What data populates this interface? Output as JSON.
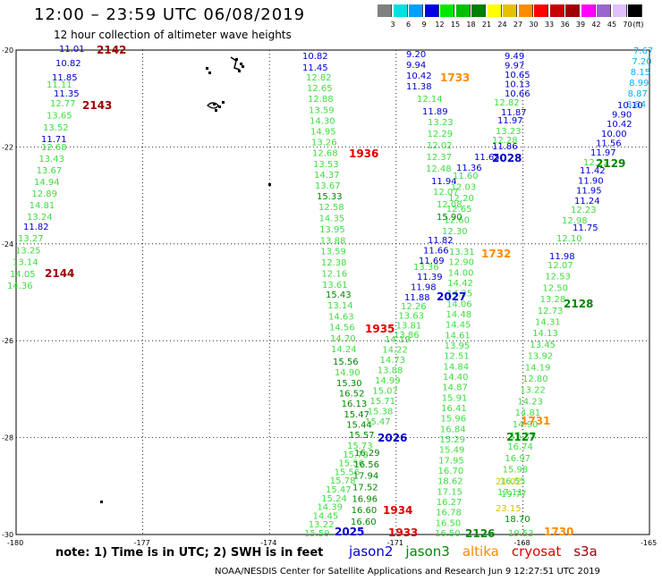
{
  "header": {
    "title": "12:00 – 23:59 UTC 06/08/2019",
    "subtitle": "12 hour collection of altimeter wave heights"
  },
  "colorbar": {
    "unit": "(ft)",
    "swatches": [
      {
        "label": "3",
        "color": "#808080"
      },
      {
        "label": "6",
        "color": "#00e0e0"
      },
      {
        "label": "9",
        "color": "#00a0ff"
      },
      {
        "label": "12",
        "color": "#0000e8"
      },
      {
        "label": "15",
        "color": "#00e800"
      },
      {
        "label": "18",
        "color": "#00c000"
      },
      {
        "label": "21",
        "color": "#008000"
      },
      {
        "label": "24",
        "color": "#ffff00"
      },
      {
        "label": "27",
        "color": "#e8c000"
      },
      {
        "label": "30",
        "color": "#ff8c00"
      },
      {
        "label": "33",
        "color": "#ff0000"
      },
      {
        "label": "36",
        "color": "#c80000"
      },
      {
        "label": "39",
        "color": "#a00000"
      },
      {
        "label": "42",
        "color": "#ff00ff"
      },
      {
        "label": "45",
        "color": "#9966cc"
      },
      {
        "label": "70",
        "color": "#e0c0ff"
      },
      {
        "label": "",
        "color": "#000000"
      }
    ]
  },
  "axes": {
    "lat_labels": [
      "-20",
      "-22",
      "-24",
      "-26",
      "-28",
      "-30"
    ],
    "lon_labels": [
      "-180",
      "-177",
      "-174",
      "-171",
      "-168",
      "-165"
    ]
  },
  "value_colors": {
    "b": "#0000d0",
    "g": "#40dd40",
    "k": "#008800",
    "c": "#00b0ff",
    "y": "#d8c000"
  },
  "tracks": [
    {
      "color": "b",
      "values": [
        "11.01",
        "10.82",
        "11.85"
      ]
    },
    {
      "color": "g",
      "values": [
        "11.11"
      ]
    },
    {
      "color": "b",
      "values": [
        "11.35"
      ]
    },
    {
      "color": "g",
      "values": [
        "12.77",
        "13.65",
        "13.52"
      ]
    },
    {
      "color": "b",
      "values": [
        "11.71"
      ]
    },
    {
      "color": "g",
      "values": [
        "12.68",
        "13.43",
        "13.67",
        "14.94",
        "12.89",
        "14.81",
        "13.24"
      ]
    },
    {
      "color": "b",
      "values": [
        "11.82"
      ]
    },
    {
      "color": "g",
      "values": [
        "13.27",
        "13.25",
        "13.14",
        "14.05",
        "14.36"
      ]
    },
    {
      "color": "b",
      "values": [
        "10.82",
        "11.45"
      ]
    },
    {
      "color": "g",
      "values": [
        "12.82",
        "12.65",
        "12.88",
        "13.59",
        "14.30",
        "14.95",
        "13.26",
        "12.68",
        "13.53",
        "14.37",
        "13.67"
      ]
    },
    {
      "color": "k",
      "values": [
        "15.33"
      ]
    },
    {
      "color": "g",
      "values": [
        "12.58",
        "14.35",
        "13.95",
        "13.88",
        "13.59",
        "12.38",
        "12.16",
        "13.61"
      ]
    },
    {
      "color": "k",
      "values": [
        "15.43"
      ]
    },
    {
      "color": "g",
      "values": [
        "13.14",
        "14.63",
        "14.56",
        "14.70",
        "14.24"
      ]
    },
    {
      "color": "k",
      "values": [
        "15.56"
      ]
    },
    {
      "color": "g",
      "values": [
        "14.90"
      ]
    },
    {
      "color": "k",
      "values": [
        "15.30",
        "16.52",
        "16.13",
        "15.47",
        "15.44",
        "15.57"
      ]
    },
    {
      "color": "g",
      "values": [
        "15.73",
        "15.78",
        "15.56",
        "15.56",
        "15.78",
        "15.47",
        "15.24",
        "14.39",
        "14.45",
        "13.22",
        "15.59"
      ]
    },
    {
      "color": "k",
      "values": [
        "16.29",
        "16.56",
        "17.94",
        "17.52",
        "16.96",
        "16.60",
        "16.60"
      ]
    },
    {
      "color": "g",
      "values": [
        "14.19",
        "14.22",
        "14.73",
        "13.88",
        "14.99",
        "15.07",
        "15.71",
        "15.38",
        "15.47"
      ]
    },
    {
      "color": "b",
      "values": [
        "9.20",
        "9.94",
        "10.42",
        "11.38"
      ]
    },
    {
      "color": "g",
      "values": [
        "12.14"
      ]
    },
    {
      "color": "b",
      "values": [
        "11.89"
      ]
    },
    {
      "color": "g",
      "values": [
        "13.23",
        "12.29",
        "12.02",
        "12.37",
        "12.48"
      ]
    },
    {
      "color": "b",
      "values": [
        "11.94"
      ]
    },
    {
      "color": "g",
      "values": [
        "12.07",
        "12.08"
      ]
    },
    {
      "color": "b",
      "values": [
        "11.82",
        "11.66",
        "11.69"
      ]
    },
    {
      "color": "g",
      "values": [
        "13.36"
      ]
    },
    {
      "color": "b",
      "values": [
        "11.39",
        "11.98",
        "11.88"
      ]
    },
    {
      "color": "g",
      "values": [
        "12.26",
        "13.63",
        "13.81",
        "13.86"
      ]
    },
    {
      "color": "b",
      "values": [
        "9.49",
        "9.97",
        "10.65",
        "10.13",
        "10.66"
      ]
    },
    {
      "color": "g",
      "values": [
        "12.82"
      ]
    },
    {
      "color": "b",
      "values": [
        "11.87",
        "11.97"
      ]
    },
    {
      "color": "g",
      "values": [
        "13.23",
        "12.28"
      ]
    },
    {
      "color": "b",
      "values": [
        "11.86",
        "11.65",
        "11.36"
      ]
    },
    {
      "color": "g",
      "values": [
        "11.60",
        "12.03",
        "12.20",
        "12.65",
        "12.60",
        "12.30"
      ]
    },
    {
      "color": "k",
      "values": [
        "15.90"
      ]
    },
    {
      "color": "g",
      "values": [
        "13.31",
        "12.90",
        "14.00",
        "14.42",
        "14.25",
        "14.06",
        "14.48",
        "14.45",
        "14.61",
        "13.95",
        "12.51",
        "14.84",
        "14.40",
        "14.87",
        "15.91",
        "16.41",
        "15.96",
        "16.84",
        "15.29",
        "15.49",
        "17.95",
        "16.70",
        "18.62",
        "17.15",
        "16.27",
        "16.78",
        "16.50",
        "16.50"
      ]
    },
    {
      "color": "c",
      "values": [
        "7.67",
        "7.20",
        "8.15",
        "8.99",
        "8.87",
        "8.84"
      ]
    },
    {
      "color": "b",
      "values": [
        "10.10",
        "9.90",
        "10.42",
        "10.00",
        "11.56",
        "11.97"
      ]
    },
    {
      "color": "g",
      "values": [
        "12.22"
      ]
    },
    {
      "color": "b",
      "values": [
        "11.42",
        "11.90",
        "11.95",
        "11.24"
      ]
    },
    {
      "color": "g",
      "values": [
        "12.23",
        "12.98"
      ]
    },
    {
      "color": "b",
      "values": [
        "11.75"
      ]
    },
    {
      "color": "g",
      "values": [
        "12.10"
      ]
    },
    {
      "color": "b",
      "values": [
        "11.98"
      ]
    },
    {
      "color": "g",
      "values": [
        "12.07",
        "12.53",
        "12.50",
        "13.28",
        "12.73",
        "14.31",
        "14.13",
        "13.45",
        "13.92",
        "14.19",
        "12.80",
        "13.22",
        "14.23",
        "14.81",
        "14.90",
        "15.25",
        "16.74",
        "16.97",
        "15.98",
        "16.55",
        "17.11"
      ]
    },
    {
      "color": "y",
      "values": [
        "21.02",
        "23.15"
      ]
    },
    {
      "color": "g",
      "values": [
        "19.77"
      ]
    },
    {
      "color": "k",
      "values": [
        "18.70"
      ]
    },
    {
      "color": "g",
      "values": [
        "19.53"
      ]
    }
  ],
  "passes": [
    {
      "label": "2142",
      "color": "#a00000"
    },
    {
      "label": "2143",
      "color": "#a00000"
    },
    {
      "label": "2144",
      "color": "#a00000"
    },
    {
      "label": "1936",
      "color": "#e00000"
    },
    {
      "label": "1935",
      "color": "#e00000"
    },
    {
      "label": "1934",
      "color": "#e00000"
    },
    {
      "label": "1933",
      "color": "#e00000"
    },
    {
      "label": "1733",
      "color": "#ff8c00"
    },
    {
      "label": "1732",
      "color": "#ff8c00"
    },
    {
      "label": "1731",
      "color": "#ff8c00"
    },
    {
      "label": "1730",
      "color": "#ff8c00"
    },
    {
      "label": "2028",
      "color": "#0000d0"
    },
    {
      "label": "2027",
      "color": "#0000d0"
    },
    {
      "label": "2026",
      "color": "#0000d0"
    },
    {
      "label": "2025",
      "color": "#0000d0"
    },
    {
      "label": "2129",
      "color": "#008800"
    },
    {
      "label": "2128",
      "color": "#008800"
    },
    {
      "label": "2127",
      "color": "#008800"
    },
    {
      "label": "2126",
      "color": "#008800"
    }
  ],
  "footer": {
    "note": "note:  1) Time is in UTC;  2) SWH is in feet",
    "legend": [
      {
        "label": "jason2",
        "color": "#0000d0"
      },
      {
        "label": "jason3",
        "color": "#008800"
      },
      {
        "label": "altika",
        "color": "#ff8c00"
      },
      {
        "label": "cryosat",
        "color": "#e00000"
      },
      {
        "label": "s3a",
        "color": "#a00000"
      }
    ],
    "credit": "NOAA/NESDIS Center for Satellite Applications and Research   Jun  9 12:27:51 UTC 2019"
  }
}
